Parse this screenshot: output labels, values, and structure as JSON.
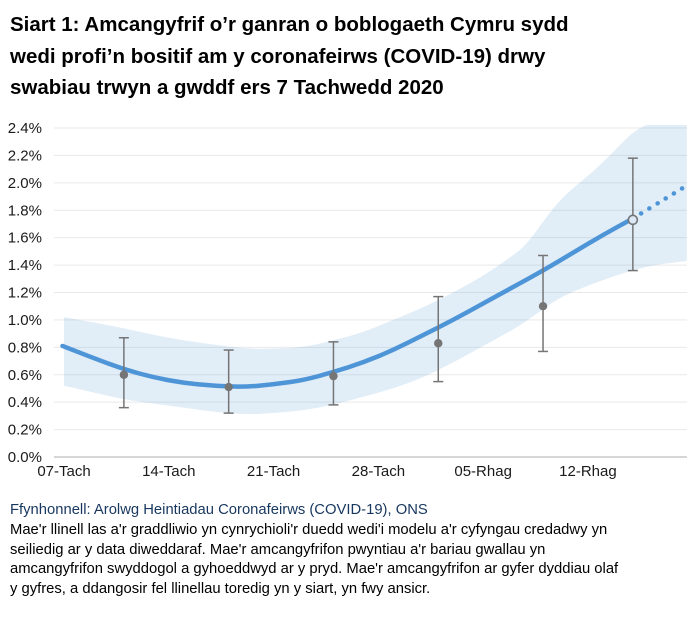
{
  "title_lines": [
    "Siart 1: Amcangyfrif o’r ganran o boblogaeth Cymru sydd",
    "wedi profi’n bositif am y coronafeirws (COVID-19) drwy",
    "swabiau trwyn a gwddf ers 7 Tachwedd 2020"
  ],
  "footer": {
    "source": "Ffynhonnell: Arolwg Heintiadau Coronafeirws (COVID-19), ONS",
    "note_lines": [
      "Mae'r llinell las a'r graddliwio yn cynrychioli'r duedd wedi'i modelu a'r cyfyngau credadwy yn",
      "seiliedig ar y data diweddaraf. Mae'r amcangyfrifon pwyntiau a'r bariau gwallau yn",
      "amcangyfrifon swyddogol a gyhoeddwyd ar y pryd. Mae'r amcangyfrifon ar gyfer dyddiau olaf",
      "y gyfres, a ddangosir fel llinellau toredig yn y siart, yn fwy ansicr."
    ]
  },
  "chart_data": {
    "type": "line",
    "title": "Siart 1: Amcangyfrif o’r ganran o boblogaeth Cymru sydd wedi profi’n bositif am y coronafeirws (COVID-19) drwy swabiau trwyn a gwddf ers 7 Tachwedd 2020",
    "grid": true,
    "legend": false,
    "x_axis": {
      "label": "",
      "tick_labels": [
        "07-Tach",
        "14-Tach",
        "21-Tach",
        "28-Tach",
        "05-Rhag",
        "12-Rhag"
      ],
      "tick_positions_days": [
        0,
        7,
        14,
        21,
        28,
        35
      ],
      "unit": "dyddiau ers 07-Tach-2020"
    },
    "y_axis": {
      "label": "",
      "tick_labels": [
        "0.0%",
        "0.2%",
        "0.4%",
        "0.6%",
        "0.8%",
        "1.0%",
        "1.2%",
        "1.4%",
        "1.6%",
        "1.8%",
        "2.0%",
        "2.2%",
        "2.4%"
      ],
      "min": 0,
      "max": 2.4,
      "step": 0.2,
      "unit": "%"
    },
    "series": [
      {
        "name": "modelled_trend_solid",
        "type": "line",
        "style": "solid",
        "x": [
          -0.1,
          2,
          4,
          6,
          8,
          10,
          12,
          14,
          16,
          18,
          20,
          22,
          24,
          26,
          28,
          30,
          32,
          34,
          36,
          38
        ],
        "y": [
          0.81,
          0.72,
          0.64,
          0.58,
          0.54,
          0.52,
          0.51,
          0.53,
          0.56,
          0.62,
          0.69,
          0.78,
          0.89,
          1.0,
          1.12,
          1.24,
          1.36,
          1.49,
          1.62,
          1.74
        ]
      },
      {
        "name": "modelled_trend_forecast_dotted",
        "type": "line",
        "style": "dotted",
        "x": [
          38,
          39.2,
          40.4,
          41.6
        ],
        "y": [
          1.74,
          1.82,
          1.9,
          1.98
        ]
      }
    ],
    "confidence_band": {
      "x": [
        0,
        2,
        4,
        6,
        8,
        10,
        12,
        14,
        16,
        18,
        20,
        22,
        24,
        26,
        28,
        30,
        31,
        33,
        35,
        36,
        37,
        38,
        39,
        40,
        41.6
      ],
      "upper": [
        1.02,
        0.98,
        0.94,
        0.89,
        0.85,
        0.82,
        0.79,
        0.79,
        0.8,
        0.85,
        0.91,
        1.0,
        1.09,
        1.2,
        1.32,
        1.47,
        1.56,
        1.87,
        2.05,
        2.15,
        2.26,
        2.37,
        2.43,
        2.46,
        2.48
      ],
      "lower": [
        0.52,
        0.47,
        0.42,
        0.39,
        0.36,
        0.33,
        0.31,
        0.32,
        0.34,
        0.38,
        0.44,
        0.5,
        0.58,
        0.69,
        0.81,
        0.93,
        1.0,
        1.16,
        1.25,
        1.29,
        1.33,
        1.36,
        1.39,
        1.41,
        1.43
      ]
    },
    "point_estimates": [
      {
        "x_day": 4,
        "value": 0.6,
        "lower": 0.36,
        "upper": 0.87
      },
      {
        "x_day": 11,
        "value": 0.51,
        "lower": 0.32,
        "upper": 0.78
      },
      {
        "x_day": 18,
        "value": 0.59,
        "lower": 0.38,
        "upper": 0.84
      },
      {
        "x_day": 25,
        "value": 0.83,
        "lower": 0.55,
        "upper": 1.17
      },
      {
        "x_day": 32,
        "value": 1.1,
        "lower": 0.77,
        "upper": 1.47
      },
      {
        "x_day": 38,
        "value": 1.73,
        "lower": 1.36,
        "upper": 2.18,
        "style": "open"
      }
    ],
    "colors": {
      "line": "#4E95D8",
      "band": "rgba(91,155,213,0.18)",
      "error_bars": "#757575",
      "gridline": "#E9E9E9",
      "axis_line": "#BDBDBD",
      "text": "#1A1A1A"
    }
  }
}
